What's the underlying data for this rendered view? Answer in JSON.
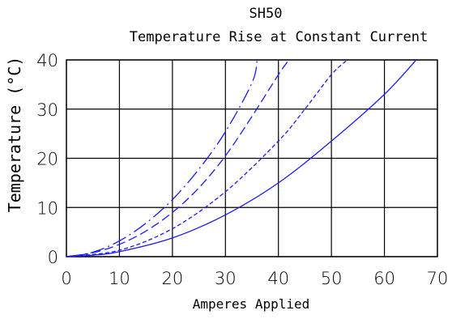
{
  "chart_data": {
    "type": "line",
    "title": "SH50",
    "subtitle": "Temperature Rise at Constant Current",
    "xlabel": "Amperes Applied",
    "ylabel": "Temperature (°C)",
    "xlim": [
      0,
      70
    ],
    "ylim": [
      0,
      40
    ],
    "xticks": [
      "0",
      "10",
      "20",
      "30",
      "40",
      "50",
      "60",
      "70"
    ],
    "yticks": [
      "0",
      "10",
      "20",
      "30",
      "40"
    ],
    "grid": true,
    "line_color": "#1a1aff",
    "series": [
      {
        "style": "long-short-dash",
        "x": [
          0,
          5,
          10,
          15,
          20,
          25,
          30,
          35,
          36
        ],
        "y": [
          0,
          0.9,
          3.2,
          6.8,
          11.6,
          17.8,
          25.4,
          35.3,
          40
        ]
      },
      {
        "style": "long-dash",
        "x": [
          0,
          5,
          10,
          15,
          20,
          25,
          30,
          35,
          40,
          42
        ],
        "y": [
          0,
          0.8,
          2.5,
          5.2,
          9.0,
          14.0,
          20.5,
          28.5,
          37.0,
          40
        ]
      },
      {
        "style": "short-dash",
        "x": [
          0,
          10,
          20,
          30,
          40,
          45,
          50,
          53
        ],
        "y": [
          0,
          1.3,
          5.7,
          13.2,
          23.5,
          30.0,
          37.0,
          40
        ]
      },
      {
        "style": "solid",
        "x": [
          0,
          5,
          10,
          20,
          30,
          40,
          50,
          60,
          66
        ],
        "y": [
          0,
          0.3,
          1.0,
          3.8,
          8.5,
          15.0,
          23.5,
          33.0,
          40
        ]
      }
    ]
  }
}
